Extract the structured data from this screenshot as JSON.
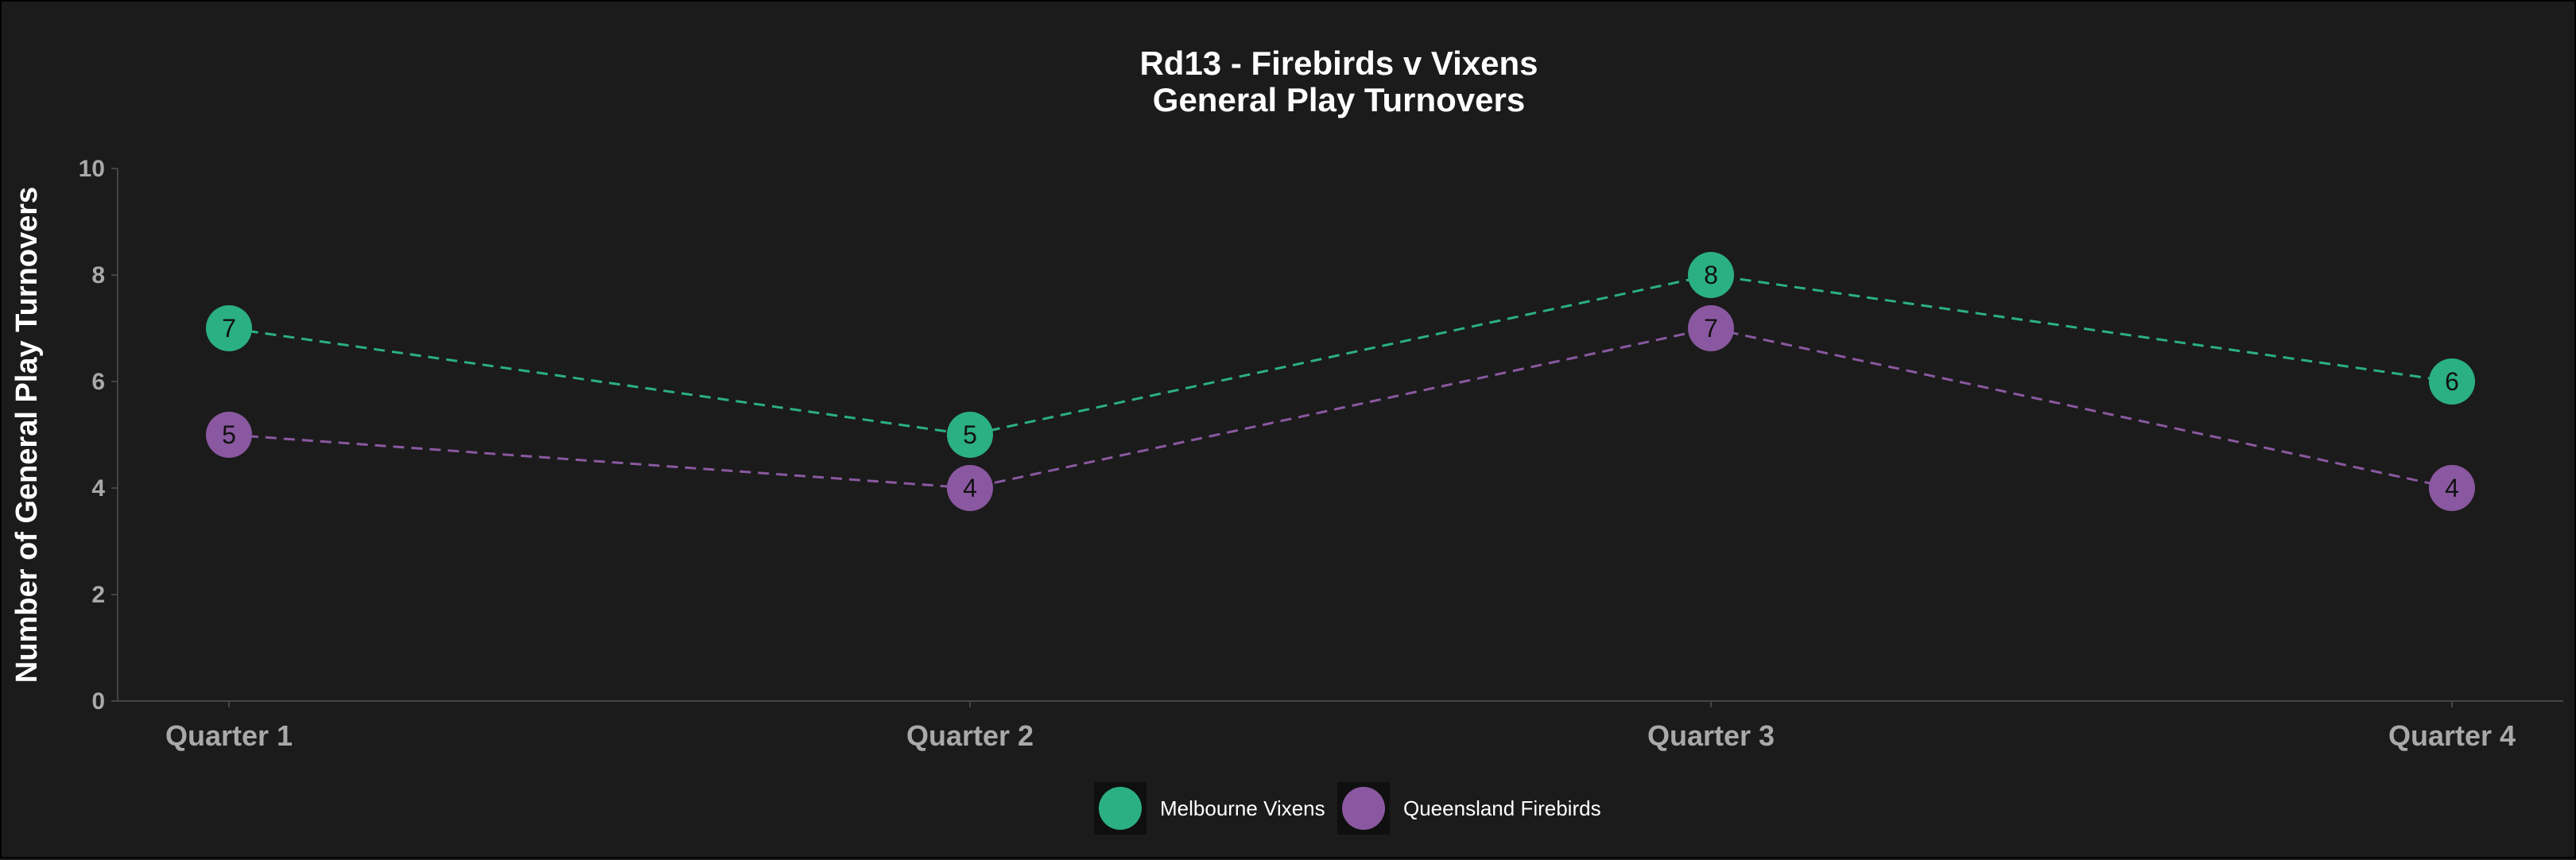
{
  "chart_data": {
    "type": "line",
    "title": [
      "Rd13 - Firebirds v Vixens",
      "General Play Turnovers"
    ],
    "xlabel": "",
    "ylabel": "Number of General Play Turnovers",
    "categories": [
      "Quarter 1",
      "Quarter 2",
      "Quarter 3",
      "Quarter 4"
    ],
    "ylim": [
      0,
      10
    ],
    "yticks": [
      0,
      2,
      4,
      6,
      8,
      10
    ],
    "grid": false,
    "line_style": "dashed",
    "legend_position": "bottom",
    "series": [
      {
        "name": "Melbourne Vixens",
        "color": "#2bb083",
        "values": [
          7,
          5,
          8,
          6
        ]
      },
      {
        "name": "Queensland Firebirds",
        "color": "#8a58a0",
        "values": [
          5,
          4,
          7,
          4
        ]
      }
    ]
  }
}
